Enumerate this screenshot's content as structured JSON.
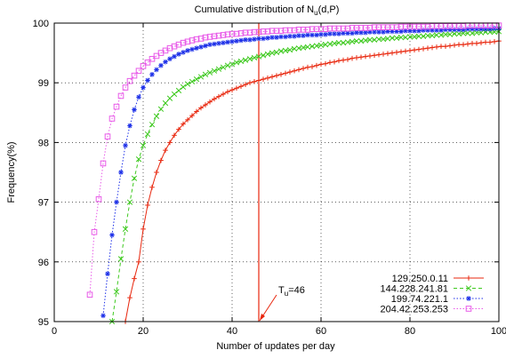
{
  "chart_data": {
    "type": "line",
    "title": "Cumulative distribution of N",
    "title_sub": "u",
    "title_tail": "(d,P)",
    "xlabel": "Number of updates per day",
    "ylabel": "Frequency(%)",
    "xlim": [
      0,
      100
    ],
    "ylim": [
      95,
      100
    ],
    "xticks": [
      0,
      20,
      40,
      60,
      80,
      100
    ],
    "yticks": [
      95,
      96,
      97,
      98,
      99,
      100
    ],
    "grid": true,
    "legend_position": "bottom-right",
    "series": [
      {
        "name": "129.250.0.11",
        "color": "#e8270e",
        "marker": "plus",
        "dash": "solid",
        "x": [
          16,
          17,
          18,
          19,
          20,
          21,
          22,
          23,
          24,
          25,
          26,
          27,
          28,
          29,
          30,
          31,
          32,
          33,
          34,
          35,
          36,
          37,
          38,
          39,
          40,
          41,
          42,
          43,
          44,
          45,
          46,
          47,
          48,
          49,
          50,
          51,
          52,
          53,
          54,
          55,
          56,
          57,
          58,
          59,
          60,
          61,
          62,
          63,
          64,
          65,
          66,
          67,
          68,
          69,
          70,
          71,
          72,
          73,
          74,
          75,
          76,
          77,
          78,
          79,
          80,
          81,
          82,
          83,
          84,
          85,
          86,
          87,
          88,
          89,
          90,
          91,
          92,
          93,
          94,
          95,
          96,
          97,
          98,
          99,
          100
        ],
        "y": [
          95.0,
          95.4,
          95.72,
          96.0,
          96.55,
          96.95,
          97.25,
          97.5,
          97.7,
          97.87,
          98.0,
          98.12,
          98.22,
          98.31,
          98.38,
          98.45,
          98.52,
          98.58,
          98.63,
          98.68,
          98.73,
          98.77,
          98.81,
          98.85,
          98.88,
          98.91,
          98.94,
          98.97,
          99.0,
          99.02,
          99.04,
          99.06,
          99.08,
          99.1,
          99.12,
          99.14,
          99.16,
          99.18,
          99.2,
          99.22,
          99.24,
          99.26,
          99.27,
          99.29,
          99.31,
          99.32,
          99.34,
          99.35,
          99.37,
          99.38,
          99.39,
          99.41,
          99.42,
          99.43,
          99.44,
          99.45,
          99.46,
          99.47,
          99.48,
          99.49,
          99.5,
          99.51,
          99.52,
          99.53,
          99.54,
          99.55,
          99.56,
          99.57,
          99.58,
          99.59,
          99.6,
          99.61,
          99.61,
          99.62,
          99.63,
          99.64,
          99.64,
          99.65,
          99.66,
          99.66,
          99.67,
          99.68,
          99.68,
          99.69,
          99.7
        ]
      },
      {
        "name": "144.228.241.81",
        "color": "#3ec91f",
        "marker": "cross",
        "dash": "dashed",
        "x": [
          13,
          14,
          15,
          16,
          17,
          18,
          19,
          20,
          21,
          22,
          23,
          24,
          25,
          26,
          27,
          28,
          29,
          30,
          31,
          32,
          33,
          34,
          35,
          36,
          37,
          38,
          39,
          40,
          41,
          42,
          43,
          44,
          45,
          46,
          47,
          48,
          49,
          50,
          51,
          52,
          53,
          54,
          55,
          56,
          57,
          58,
          59,
          60,
          61,
          62,
          63,
          64,
          65,
          66,
          67,
          68,
          69,
          70,
          71,
          72,
          73,
          74,
          75,
          76,
          77,
          78,
          79,
          80,
          81,
          82,
          83,
          84,
          85,
          86,
          87,
          88,
          89,
          90,
          91,
          92,
          93,
          94,
          95,
          96,
          97,
          98,
          99,
          100
        ],
        "y": [
          95.0,
          95.5,
          96.05,
          96.55,
          97.0,
          97.4,
          97.72,
          97.95,
          98.14,
          98.3,
          98.44,
          98.56,
          98.66,
          98.74,
          98.81,
          98.87,
          98.93,
          98.98,
          99.02,
          99.06,
          99.1,
          99.14,
          99.17,
          99.2,
          99.23,
          99.26,
          99.29,
          99.31,
          99.34,
          99.36,
          99.38,
          99.4,
          99.42,
          99.44,
          99.46,
          99.48,
          99.5,
          99.51,
          99.53,
          99.54,
          99.55,
          99.57,
          99.58,
          99.59,
          99.6,
          99.61,
          99.62,
          99.63,
          99.64,
          99.65,
          99.66,
          99.67,
          99.67,
          99.68,
          99.69,
          99.7,
          99.7,
          99.71,
          99.72,
          99.72,
          99.73,
          99.73,
          99.74,
          99.75,
          99.75,
          99.76,
          99.76,
          99.77,
          99.77,
          99.78,
          99.78,
          99.79,
          99.79,
          99.8,
          99.8,
          99.81,
          99.81,
          99.82,
          99.82,
          99.83,
          99.83,
          99.83,
          99.84,
          99.84,
          99.85,
          99.85,
          99.85,
          99.86
        ]
      },
      {
        "name": "199.74.221.1",
        "color": "#1c2fe8",
        "marker": "star",
        "dash": "dotted",
        "x": [
          11,
          12,
          13,
          14,
          15,
          16,
          17,
          18,
          19,
          20,
          21,
          22,
          23,
          24,
          25,
          26,
          27,
          28,
          29,
          30,
          31,
          32,
          33,
          34,
          35,
          36,
          37,
          38,
          39,
          40,
          41,
          42,
          43,
          44,
          45,
          46,
          47,
          48,
          49,
          50,
          51,
          52,
          53,
          54,
          55,
          56,
          57,
          58,
          59,
          60,
          61,
          62,
          63,
          64,
          65,
          66,
          67,
          68,
          69,
          70,
          71,
          72,
          73,
          74,
          75,
          76,
          77,
          78,
          79,
          80,
          81,
          82,
          83,
          84,
          85,
          86,
          87,
          88,
          89,
          90,
          91,
          92,
          93,
          94,
          95,
          96,
          97,
          98,
          99,
          100
        ],
        "y": [
          95.1,
          95.8,
          96.45,
          97.0,
          97.5,
          97.95,
          98.28,
          98.55,
          98.76,
          98.92,
          99.04,
          99.14,
          99.22,
          99.29,
          99.35,
          99.4,
          99.44,
          99.48,
          99.51,
          99.54,
          99.56,
          99.58,
          99.6,
          99.62,
          99.64,
          99.65,
          99.66,
          99.67,
          99.68,
          99.69,
          99.7,
          99.71,
          99.72,
          99.72,
          99.73,
          99.74,
          99.74,
          99.75,
          99.76,
          99.76,
          99.77,
          99.77,
          99.78,
          99.78,
          99.79,
          99.79,
          99.8,
          99.8,
          99.8,
          99.81,
          99.81,
          99.82,
          99.82,
          99.82,
          99.83,
          99.83,
          99.83,
          99.84,
          99.84,
          99.84,
          99.85,
          99.85,
          99.85,
          99.85,
          99.86,
          99.86,
          99.86,
          99.86,
          99.87,
          99.87,
          99.87,
          99.87,
          99.88,
          99.88,
          99.88,
          99.88,
          99.88,
          99.89,
          99.89,
          99.89,
          99.89,
          99.89,
          99.9,
          99.9,
          99.9,
          99.9,
          99.9,
          99.9,
          99.91,
          99.91
        ]
      },
      {
        "name": "204.42.253.253",
        "color": "#e85ae8",
        "marker": "square",
        "dash": "dotted",
        "x": [
          8,
          9,
          10,
          11,
          12,
          13,
          14,
          15,
          16,
          17,
          18,
          19,
          20,
          21,
          22,
          23,
          24,
          25,
          26,
          27,
          28,
          29,
          30,
          31,
          32,
          33,
          34,
          35,
          36,
          37,
          38,
          39,
          40,
          41,
          42,
          43,
          44,
          45,
          46,
          47,
          48,
          49,
          50,
          51,
          52,
          53,
          54,
          55,
          56,
          57,
          58,
          59,
          60,
          61,
          62,
          63,
          64,
          65,
          66,
          67,
          68,
          69,
          70,
          71,
          72,
          73,
          74,
          75,
          76,
          77,
          78,
          79,
          80,
          81,
          82,
          83,
          84,
          85,
          86,
          87,
          88,
          89,
          90,
          91,
          92,
          93,
          94,
          95,
          96,
          97,
          98,
          99,
          100
        ],
        "y": [
          95.45,
          96.5,
          97.05,
          97.65,
          98.1,
          98.4,
          98.6,
          98.78,
          98.92,
          99.03,
          99.12,
          99.2,
          99.28,
          99.34,
          99.4,
          99.45,
          99.5,
          99.54,
          99.58,
          99.61,
          99.64,
          99.67,
          99.69,
          99.71,
          99.73,
          99.74,
          99.76,
          99.77,
          99.78,
          99.79,
          99.8,
          99.81,
          99.82,
          99.82,
          99.83,
          99.84,
          99.84,
          99.85,
          99.85,
          99.86,
          99.86,
          99.87,
          99.87,
          99.87,
          99.88,
          99.88,
          99.88,
          99.89,
          99.89,
          99.89,
          99.9,
          99.9,
          99.9,
          99.9,
          99.91,
          99.91,
          99.91,
          99.91,
          99.91,
          99.92,
          99.92,
          99.92,
          99.92,
          99.92,
          99.93,
          99.93,
          99.93,
          99.93,
          99.93,
          99.93,
          99.94,
          99.94,
          99.94,
          99.94,
          99.94,
          99.94,
          99.94,
          99.95,
          99.95,
          99.95,
          99.95,
          99.95,
          99.95,
          99.95,
          99.95,
          99.96,
          99.96,
          99.96,
          99.96,
          99.96,
          99.96,
          99.96,
          99.96
        ]
      }
    ],
    "annotations": [
      {
        "text": "T",
        "text_sub": "u",
        "text_tail": "=46",
        "vline_x": 46,
        "color": "#e8270e"
      }
    ]
  }
}
